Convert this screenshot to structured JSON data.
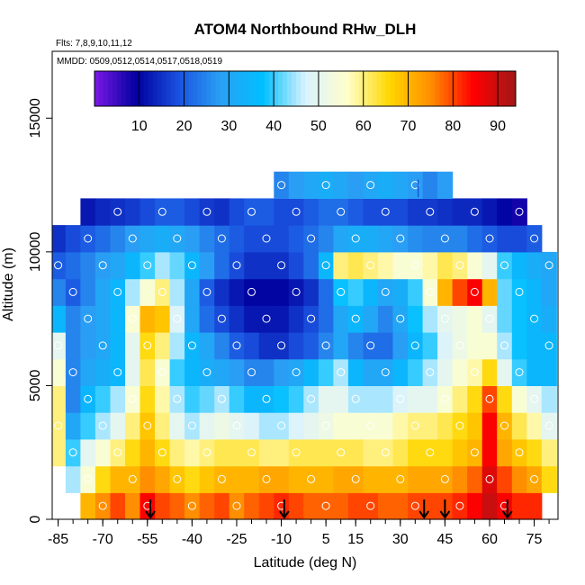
{
  "chart_data": {
    "type": "heatmap",
    "title": "ATOM4 Northbound RHw_DLH",
    "subtitle_flights": "Flts: 7,8,9,10,11,12",
    "subtitle_dates": "MMDD: 0509,0512,0514,0517,0518,0519",
    "xlabel": "Latitude (deg N)",
    "ylabel": "Altitude (m)",
    "xlim": [
      -87,
      83
    ],
    "ylim": [
      0,
      17500
    ],
    "x_ticks": [
      -85,
      -70,
      -55,
      -40,
      -25,
      -10,
      5,
      15,
      30,
      45,
      60,
      75
    ],
    "y_ticks": [
      0,
      5000,
      10000,
      15000
    ],
    "colorbar": {
      "range": [
        0,
        94
      ],
      "ticks": [
        10,
        20,
        30,
        40,
        50,
        60,
        70,
        80,
        90
      ],
      "colors": [
        "#7b18e6",
        "#00009e",
        "#1a52e0",
        "#2aa0f4",
        "#00bfff",
        "#d8f2ff",
        "#ffffcc",
        "#ffd700",
        "#ff8c00",
        "#ff0000",
        "#a01818"
      ]
    },
    "profile_arrow_latitudes": [
      -54,
      -9,
      38,
      45,
      66
    ],
    "marker_latitude": 36,
    "latitude_bins": [
      -85,
      -80,
      -75,
      -70,
      -65,
      -60,
      -55,
      -50,
      -45,
      -40,
      -35,
      -30,
      -25,
      -20,
      -15,
      -10,
      -5,
      0,
      5,
      10,
      15,
      20,
      25,
      30,
      35,
      40,
      45,
      50,
      55,
      60,
      65,
      70,
      75,
      80
    ],
    "altitude_bins": [
      500,
      1500,
      2500,
      3500,
      4500,
      5500,
      6500,
      7500,
      8500,
      9500,
      10500,
      11500,
      12500
    ],
    "rhw_percent": [
      [
        null,
        null,
        70,
        75,
        80,
        75,
        85,
        80,
        78,
        75,
        78,
        80,
        75,
        78,
        80,
        82,
        80,
        78,
        78,
        78,
        80,
        80,
        78,
        78,
        80,
        80,
        80,
        82,
        85,
        90,
        85,
        82,
        82,
        null
      ],
      [
        null,
        45,
        55,
        65,
        70,
        70,
        75,
        72,
        68,
        65,
        68,
        70,
        70,
        70,
        72,
        72,
        70,
        70,
        70,
        72,
        72,
        70,
        70,
        70,
        72,
        72,
        72,
        75,
        78,
        88,
        80,
        75,
        72,
        65
      ],
      [
        60,
        40,
        50,
        55,
        60,
        65,
        70,
        65,
        60,
        58,
        60,
        62,
        62,
        62,
        60,
        60,
        62,
        62,
        62,
        62,
        62,
        60,
        60,
        62,
        65,
        65,
        65,
        68,
        70,
        85,
        72,
        68,
        65,
        60
      ],
      [
        60,
        30,
        40,
        45,
        50,
        60,
        68,
        60,
        50,
        45,
        50,
        52,
        50,
        48,
        45,
        45,
        48,
        50,
        52,
        55,
        55,
        55,
        55,
        58,
        60,
        60,
        62,
        65,
        68,
        85,
        70,
        62,
        58,
        50
      ],
      [
        60,
        25,
        35,
        40,
        45,
        55,
        65,
        58,
        45,
        40,
        42,
        45,
        40,
        35,
        35,
        38,
        40,
        45,
        50,
        50,
        45,
        45,
        45,
        48,
        50,
        50,
        55,
        60,
        65,
        80,
        65,
        55,
        50,
        45
      ],
      [
        55,
        25,
        30,
        32,
        35,
        50,
        62,
        55,
        40,
        35,
        32,
        30,
        28,
        25,
        25,
        28,
        30,
        35,
        40,
        45,
        35,
        30,
        30,
        35,
        40,
        45,
        50,
        55,
        58,
        65,
        50,
        40,
        35,
        35
      ],
      [
        50,
        25,
        28,
        30,
        35,
        50,
        65,
        60,
        45,
        35,
        30,
        25,
        20,
        18,
        15,
        15,
        18,
        20,
        25,
        30,
        25,
        22,
        22,
        28,
        35,
        40,
        48,
        52,
        55,
        55,
        45,
        38,
        35,
        35
      ],
      [
        35,
        25,
        28,
        30,
        35,
        55,
        70,
        68,
        48,
        30,
        22,
        18,
        15,
        12,
        12,
        12,
        15,
        18,
        22,
        30,
        35,
        30,
        25,
        30,
        38,
        45,
        50,
        52,
        55,
        50,
        42,
        38,
        35,
        32
      ],
      [
        25,
        20,
        25,
        30,
        35,
        45,
        55,
        60,
        45,
        30,
        20,
        15,
        12,
        10,
        10,
        10,
        12,
        15,
        22,
        38,
        40,
        35,
        30,
        32,
        40,
        55,
        70,
        80,
        85,
        70,
        42,
        38,
        35,
        30
      ],
      [
        20,
        22,
        25,
        28,
        30,
        35,
        40,
        45,
        42,
        35,
        28,
        22,
        18,
        15,
        15,
        15,
        18,
        22,
        35,
        60,
        62,
        60,
        58,
        55,
        55,
        58,
        62,
        60,
        55,
        50,
        40,
        35,
        32,
        30
      ],
      [
        15,
        18,
        20,
        22,
        25,
        28,
        30,
        32,
        30,
        28,
        25,
        22,
        20,
        18,
        18,
        18,
        20,
        22,
        25,
        30,
        32,
        32,
        30,
        28,
        26,
        25,
        25,
        25,
        22,
        20,
        18,
        18,
        20,
        null
      ],
      [
        null,
        null,
        12,
        14,
        15,
        16,
        18,
        20,
        20,
        18,
        16,
        15,
        18,
        20,
        20,
        18,
        18,
        20,
        22,
        22,
        20,
        18,
        18,
        18,
        16,
        16,
        15,
        14,
        14,
        12,
        10,
        8,
        null,
        null
      ],
      [
        null,
        null,
        null,
        null,
        null,
        null,
        null,
        null,
        null,
        null,
        null,
        null,
        null,
        null,
        null,
        25,
        28,
        30,
        32,
        30,
        28,
        30,
        32,
        30,
        28,
        25,
        28,
        null,
        null,
        null,
        null,
        null,
        null,
        null
      ]
    ]
  }
}
